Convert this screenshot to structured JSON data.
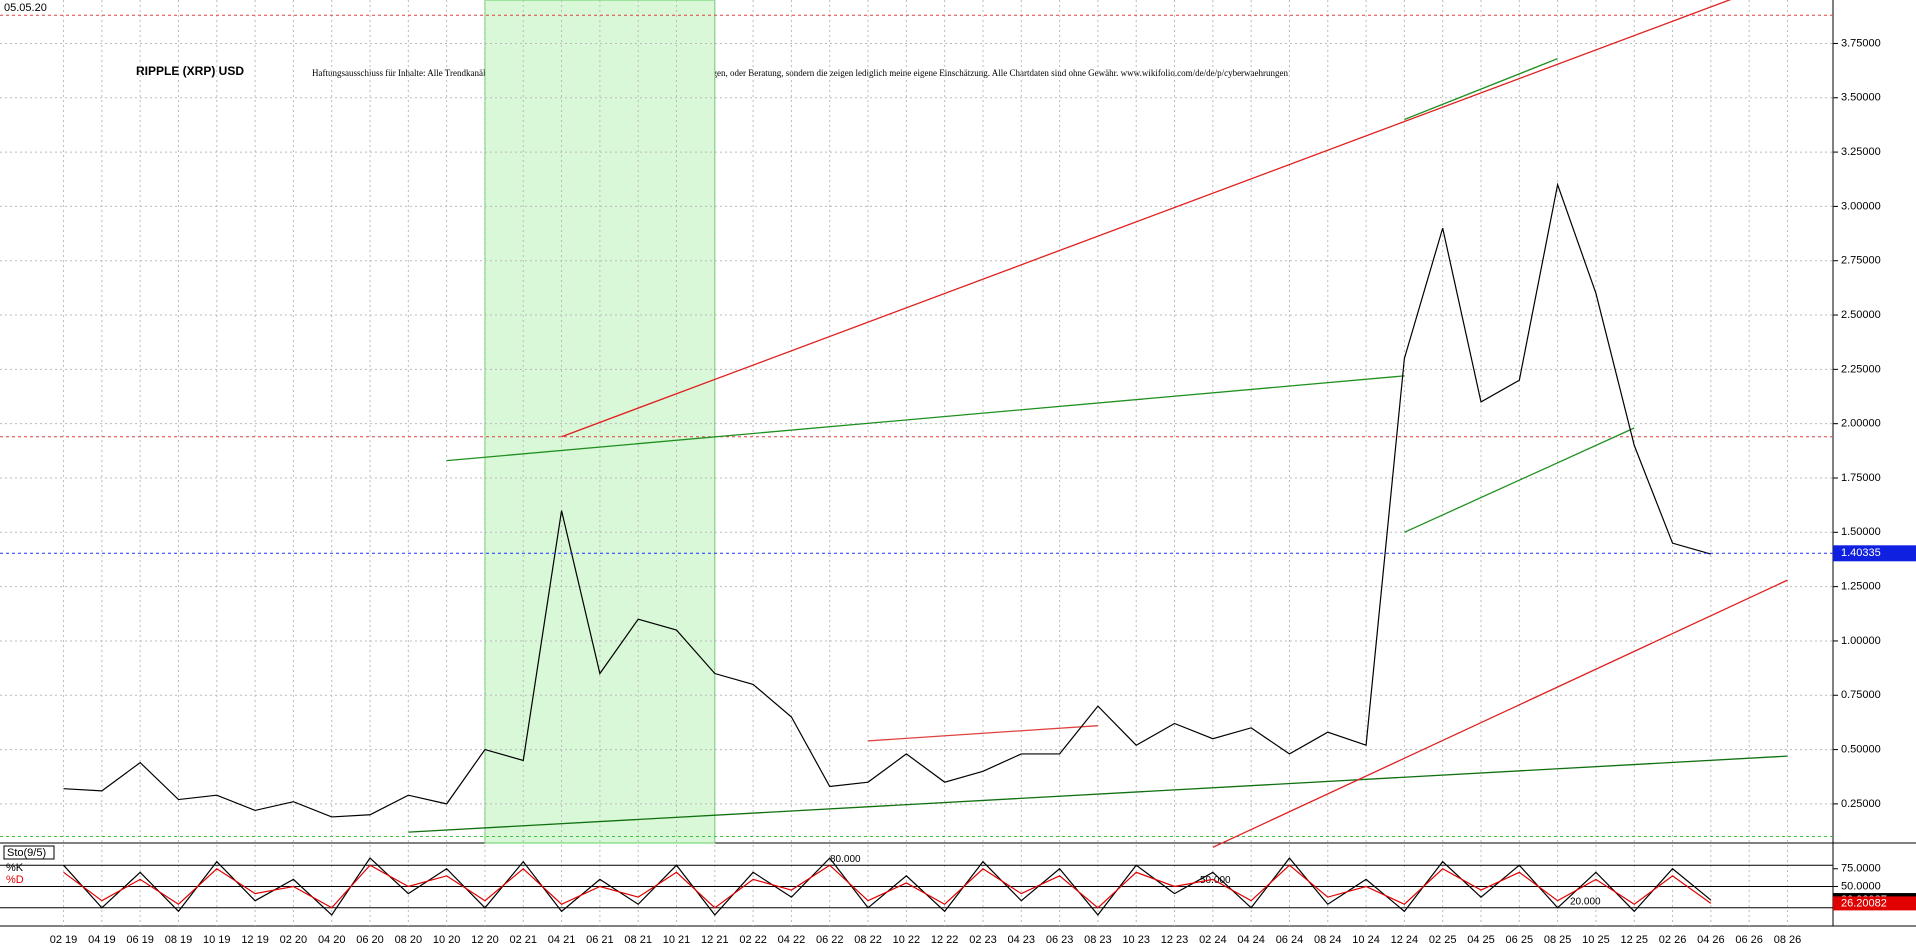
{
  "chart_data": {
    "type": "line",
    "title": "RIPPLE (XRP) USD",
    "subtitle": "Haftungsausschluss für Inhalte: Alle Trendkanäle bzw. andere Linien, oder Grafiken hier sind keine Empfehlungen, oder Beratung, sondern die zeigen lediglich meine eigene Einschätzung. Alle Chartdaten sind ohne Gewähr. www.wikifolio.com/de/de/p/cyberwaehrungen",
    "date_label": "05.05.20",
    "categories": [
      "02 19",
      "04 19",
      "06 19",
      "08 19",
      "10 19",
      "12 19",
      "02 20",
      "04 20",
      "06 20",
      "08 20",
      "10 20",
      "12 20",
      "02 21",
      "04 21",
      "06 21",
      "08 21",
      "10 21",
      "12 21",
      "02 22",
      "04 22",
      "06 22",
      "08 22",
      "10 22",
      "12 22",
      "02 23",
      "04 23",
      "06 23",
      "08 23",
      "10 23",
      "12 23",
      "02 24",
      "04 24",
      "06 24",
      "08 24",
      "10 24",
      "12 24",
      "02 25",
      "04 25",
      "06 25",
      "08 25",
      "10 25",
      "12 25",
      "02 26",
      "04 26",
      "06 26",
      "08 26"
    ],
    "series": [
      {
        "name": "XRP",
        "color": "#000000",
        "values": [
          0.32,
          0.31,
          0.44,
          0.27,
          0.29,
          0.22,
          0.26,
          0.19,
          0.2,
          0.29,
          0.25,
          0.5,
          0.45,
          1.6,
          0.85,
          1.1,
          1.05,
          0.85,
          0.8,
          0.65,
          0.33,
          0.35,
          0.48,
          0.35,
          0.4,
          0.48,
          0.48,
          0.7,
          0.52,
          0.62,
          0.55,
          0.6,
          0.48,
          0.58,
          0.52,
          2.3,
          2.9,
          2.1,
          2.2,
          3.1,
          2.6,
          1.9,
          1.45,
          1.4,
          null,
          null
        ]
      }
    ],
    "ylim": [
      0.07,
      3.95
    ],
    "yticks": [
      {
        "value": 0.25,
        "label": "0.25000"
      },
      {
        "value": 0.5,
        "label": "0.50000"
      },
      {
        "value": 0.75,
        "label": "0.75000"
      },
      {
        "value": 1,
        "label": "1.00000"
      },
      {
        "value": 1.25,
        "label": "1.25000"
      },
      {
        "value": 1.5,
        "label": "1.50000"
      },
      {
        "value": 1.75,
        "label": "1.75000"
      },
      {
        "value": 2,
        "label": "2.00000"
      },
      {
        "value": 2.25,
        "label": "2.25000"
      },
      {
        "value": 2.5,
        "label": "2.50000"
      },
      {
        "value": 2.75,
        "label": "2.75000"
      },
      {
        "value": 3,
        "label": "3.00000"
      },
      {
        "value": 3.25,
        "label": "3.25000"
      },
      {
        "value": 3.5,
        "label": "3.50000"
      },
      {
        "value": 3.75,
        "label": "3.75000"
      }
    ],
    "grid": true,
    "last_price": 1.40335,
    "highlight": {
      "from": "12 20",
      "to": "12 21",
      "color": "#d8f8d8"
    },
    "levels": [
      {
        "value": 3.88,
        "color": "#e04040"
      },
      {
        "value": 1.94,
        "color": "#e04040"
      },
      {
        "value": 0.1,
        "color": "#40c040"
      }
    ],
    "trendlines": [
      {
        "x1": "04 21",
        "y1": 1.94,
        "x2": "08 26",
        "y2": 4.05,
        "color": "#e02020"
      },
      {
        "x1": "10 20",
        "y1": 1.83,
        "x2": "12 24",
        "y2": 2.22,
        "color": "#209020"
      },
      {
        "x1": "08 20",
        "y1": 0.12,
        "x2": "08 26",
        "y2": 0.47,
        "color": "#107010"
      },
      {
        "x1": "02 24",
        "y1": 0.05,
        "x2": "08 26",
        "y2": 1.28,
        "color": "#e02020"
      },
      {
        "x1": "08 22",
        "y1": 0.54,
        "x2": "08 23",
        "y2": 0.61,
        "color": "#e04040"
      },
      {
        "x1": "12 24",
        "y1": 3.4,
        "x2": "08 25",
        "y2": 3.68,
        "color": "#209020"
      },
      {
        "x1": "12 24",
        "y1": 1.5,
        "x2": "12 25",
        "y2": 1.98,
        "color": "#209020"
      }
    ],
    "oscillator": {
      "title": "Sto(9/5)",
      "ylim": [
        0,
        100
      ],
      "yticks": [
        {
          "value": 75,
          "label": "75.0000"
        },
        {
          "value": 50,
          "label": "50.0000"
        }
      ],
      "levels": [
        {
          "value": 80,
          "label": "80.000"
        },
        {
          "value": 50,
          "label": "50.000"
        },
        {
          "value": 20,
          "label": "20.000"
        }
      ],
      "series": [
        {
          "name": "%K",
          "color": "#000000",
          "last": 30.92987,
          "values": [
            80,
            20,
            70,
            15,
            85,
            30,
            60,
            10,
            90,
            40,
            75,
            20,
            85,
            15,
            60,
            25,
            80,
            10,
            70,
            35,
            90,
            20,
            65,
            15,
            85,
            30,
            75,
            10,
            80,
            40,
            70,
            20,
            90,
            25,
            60,
            15,
            85,
            35,
            80,
            20,
            70,
            15,
            75,
            30.92987,
            null,
            null
          ]
        },
        {
          "name": "%D",
          "color": "#e00000",
          "last": 26.20082,
          "values": [
            70,
            30,
            60,
            25,
            75,
            40,
            50,
            20,
            80,
            50,
            65,
            30,
            75,
            25,
            50,
            35,
            70,
            20,
            60,
            45,
            80,
            30,
            55,
            25,
            75,
            40,
            65,
            20,
            70,
            50,
            60,
            30,
            80,
            35,
            50,
            25,
            75,
            45,
            70,
            30,
            60,
            25,
            65,
            26.20082,
            null,
            null
          ]
        }
      ]
    }
  }
}
